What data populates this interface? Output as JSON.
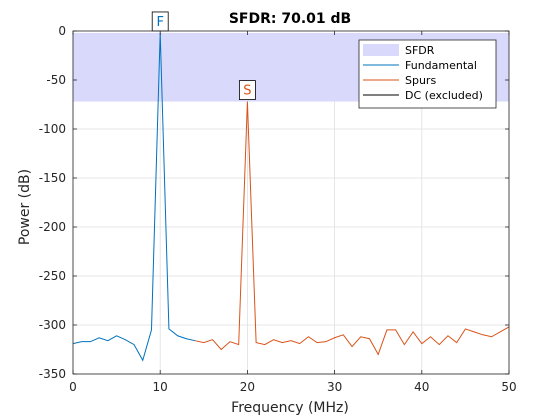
{
  "chart_data": {
    "type": "line",
    "title": "SFDR:  70.01 dB",
    "xlabel": "Frequency (MHz)",
    "ylabel": "Power (dB)",
    "xlim": [
      0,
      50
    ],
    "ylim": [
      -350,
      0
    ],
    "xticks": [
      "0",
      "10",
      "20",
      "30",
      "40",
      "50"
    ],
    "yticks": [
      "0",
      "-50",
      "-100",
      "-150",
      "-200",
      "-250",
      "-300",
      "-350"
    ],
    "grid": true,
    "legend_position": "top-right",
    "sfdr_band": {
      "name": "SFDR",
      "from": -2,
      "to": -72.01,
      "color": "#d9d9fb"
    },
    "series": [
      {
        "name": "Fundamental",
        "color": "#0072bd",
        "x": [
          0,
          1,
          2,
          3,
          4,
          5,
          6,
          7,
          8,
          9,
          10,
          11,
          12,
          13,
          14
        ],
        "y": [
          -319,
          -317,
          -317,
          -313,
          -316,
          -311,
          -315,
          -320,
          -336,
          -305,
          -2,
          -304,
          -311,
          -314,
          -316
        ]
      },
      {
        "name": "Spurs",
        "color": "#d95319",
        "x": [
          14,
          15,
          16,
          17,
          18,
          19,
          20,
          21,
          22,
          23,
          24,
          25,
          26,
          27,
          28,
          29,
          30,
          31,
          32,
          33,
          34,
          35,
          36,
          37,
          38,
          39,
          40,
          41,
          42,
          43,
          44,
          45,
          46,
          47,
          48,
          49,
          50
        ],
        "y": [
          -316,
          -318,
          -315,
          -325,
          -317,
          -320,
          -72,
          -318,
          -320,
          -315,
          -318,
          -316,
          -319,
          -312,
          -318,
          -317,
          -313,
          -310,
          -322,
          -312,
          -314,
          -330,
          -305,
          -305,
          -320,
          -307,
          -319,
          -312,
          -320,
          -311,
          -318,
          -304,
          -307,
          -310,
          -312,
          -307,
          -302
        ]
      },
      {
        "name": "DC (excluded)",
        "color": "#000000",
        "x": [],
        "y": []
      }
    ],
    "markers": [
      {
        "label": "F",
        "x": 10,
        "y": -2,
        "color": "#0072bd"
      },
      {
        "label": "S",
        "x": 20,
        "y": -72,
        "color": "#d95319"
      }
    ]
  }
}
